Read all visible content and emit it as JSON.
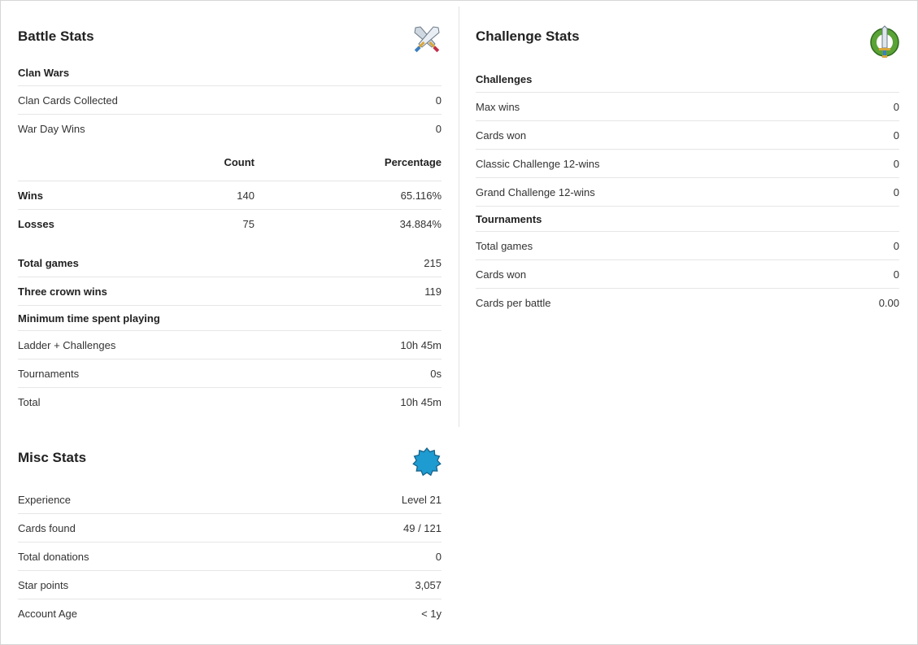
{
  "battle": {
    "title": "Battle Stats",
    "icon": "crossed-swords-icon",
    "clan_wars": {
      "header": "Clan Wars",
      "rows": [
        {
          "label": "Clan Cards Collected",
          "value": "0"
        },
        {
          "label": "War Day Wins",
          "value": "0"
        }
      ]
    },
    "table": {
      "columns": [
        "",
        "Count",
        "Percentage"
      ],
      "rows": [
        {
          "label": "Wins",
          "count": "140",
          "percentage": "65.116%"
        },
        {
          "label": "Losses",
          "count": "75",
          "percentage": "34.884%"
        }
      ]
    },
    "totals": [
      {
        "label": "Total games",
        "value": "215"
      },
      {
        "label": "Three crown wins",
        "value": "119"
      }
    ],
    "time": {
      "header": "Minimum time spent playing",
      "rows": [
        {
          "label": "Ladder + Challenges",
          "value": "10h 45m"
        },
        {
          "label": "Tournaments",
          "value": "0s"
        },
        {
          "label": "Total",
          "value": "10h 45m"
        }
      ]
    }
  },
  "challenge": {
    "title": "Challenge Stats",
    "icon": "laurel-sword-icon",
    "challenges": {
      "header": "Challenges",
      "rows": [
        {
          "label": "Max wins",
          "value": "0"
        },
        {
          "label": "Cards won",
          "value": "0"
        },
        {
          "label": "Classic Challenge 12-wins",
          "value": "0"
        },
        {
          "label": "Grand Challenge 12-wins",
          "value": "0"
        }
      ]
    },
    "tournaments": {
      "header": "Tournaments",
      "rows": [
        {
          "label": "Total games",
          "value": "0"
        },
        {
          "label": "Cards won",
          "value": "0"
        },
        {
          "label": "Cards per battle",
          "value": "0.00"
        }
      ]
    }
  },
  "misc": {
    "title": "Misc Stats",
    "icon": "experience-star-icon",
    "rows": [
      {
        "label": "Experience",
        "value": "Level 21"
      },
      {
        "label": "Cards found",
        "value": "49 / 121"
      },
      {
        "label": "Total donations",
        "value": "0"
      },
      {
        "label": "Star points",
        "value": "3,057"
      },
      {
        "label": "Account Age",
        "value": "< 1y"
      }
    ]
  },
  "colors": {
    "accent_blue": "#1e9bd0",
    "laurel_green": "#4f9a2e",
    "border": "#e6e6e6"
  }
}
